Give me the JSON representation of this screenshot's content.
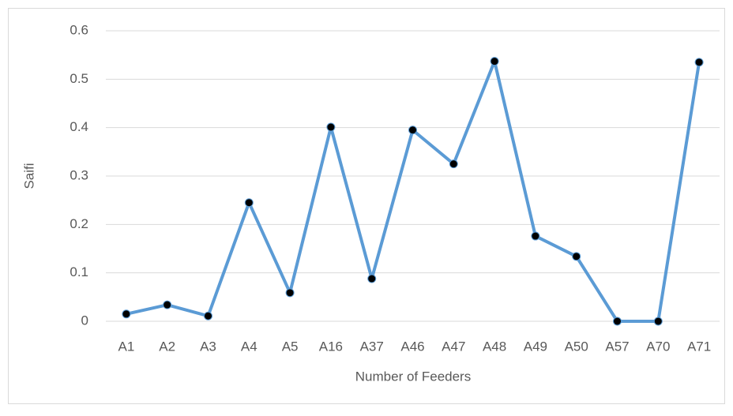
{
  "chart_data": {
    "type": "line",
    "x_label": "Number of Feeders",
    "y_label": "Saifi",
    "categories": [
      "A1",
      "A2",
      "A3",
      "A4",
      "A5",
      "A16",
      "A37",
      "A46",
      "A47",
      "A48",
      "A49",
      "A50",
      "A57",
      "A70",
      "A71"
    ],
    "values": [
      0.015,
      0.034,
      0.011,
      0.245,
      0.059,
      0.401,
      0.088,
      0.395,
      0.325,
      0.537,
      0.176,
      0.134,
      0,
      0,
      0.535
    ],
    "color": "#5b9bd5",
    "marker_color": "#000000",
    "ylim": [
      0,
      0.6
    ],
    "yticks": [
      0,
      0.1,
      0.2,
      0.3,
      0.4,
      0.5,
      0.6
    ],
    "grid": true
  }
}
